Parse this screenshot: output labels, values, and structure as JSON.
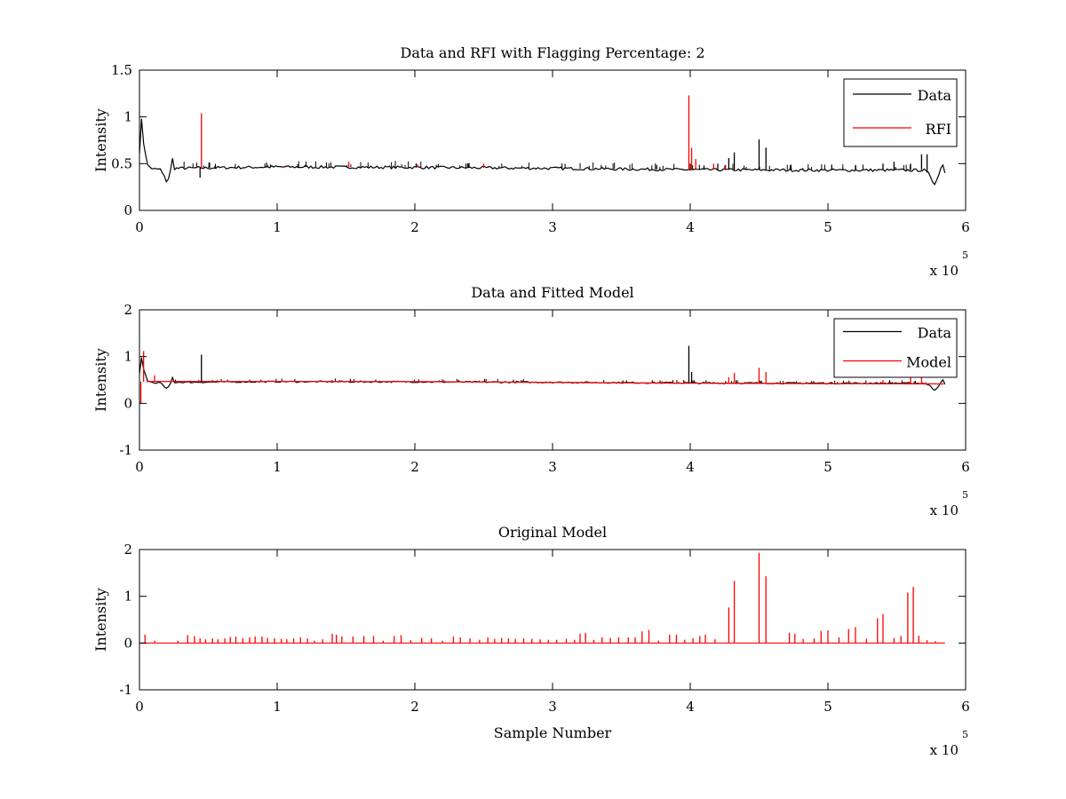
{
  "chart_data": [
    {
      "type": "line",
      "title": "Data and RFI with Flagging Percentage: 2",
      "xlabel": "",
      "ylabel": "Intensity",
      "xlim": [
        0,
        600000
      ],
      "ylim": [
        0,
        1.5
      ],
      "xticks": [
        "0",
        "1",
        "2",
        "3",
        "4",
        "5",
        "6"
      ],
      "yticks": [
        "0",
        "0.5",
        "1",
        "1.5"
      ],
      "x_multiplier": "x 10",
      "x_exponent": "5",
      "grid": false,
      "legend": "top-right",
      "baseline": [
        [
          0,
          0.62
        ],
        [
          1000,
          1.05
        ],
        [
          3000,
          0.72
        ],
        [
          6000,
          0.48
        ],
        [
          10000,
          0.44
        ],
        [
          15000,
          0.44
        ],
        [
          18000,
          0.36
        ],
        [
          20000,
          0.3
        ],
        [
          22000,
          0.38
        ],
        [
          24000,
          0.55
        ],
        [
          25000,
          0.45
        ],
        [
          100000,
          0.465
        ],
        [
          200000,
          0.46
        ],
        [
          300000,
          0.45
        ],
        [
          400000,
          0.435
        ],
        [
          500000,
          0.43
        ],
        [
          570000,
          0.43
        ],
        [
          574000,
          0.38
        ],
        [
          577000,
          0.28
        ],
        [
          580000,
          0.35
        ],
        [
          583000,
          0.52
        ],
        [
          585000,
          0.4
        ]
      ],
      "series": [
        {
          "name": "Data",
          "color": "#000000",
          "spikes": [
            [
              44000,
              0.35
            ],
            [
              400000,
              0.5
            ],
            [
              410000,
              0.48
            ],
            [
              420000,
              0.5
            ],
            [
              428000,
              0.56
            ],
            [
              432000,
              0.62
            ],
            [
              450000,
              0.76
            ],
            [
              455000,
              0.67
            ],
            [
              520000,
              0.48
            ],
            [
              540000,
              0.5
            ],
            [
              548000,
              0.52
            ],
            [
              560000,
              0.5
            ],
            [
              568000,
              0.6
            ],
            [
              572000,
              0.6
            ]
          ]
        },
        {
          "name": "RFI",
          "color": "#ff0000",
          "spikes": [
            [
              45000,
              1.04
            ],
            [
              106000,
              0.48
            ],
            [
              152000,
              0.52
            ],
            [
              202000,
              0.49
            ],
            [
              250000,
              0.5
            ],
            [
              399000,
              1.23
            ],
            [
              401000,
              0.67
            ],
            [
              404000,
              0.55
            ],
            [
              417000,
              0.5
            ],
            [
              425000,
              0.48
            ]
          ]
        }
      ]
    },
    {
      "type": "line",
      "title": "Data and Fitted Model",
      "xlabel": "",
      "ylabel": "Intensity",
      "xlim": [
        0,
        600000
      ],
      "ylim": [
        -1,
        2
      ],
      "xticks": [
        "0",
        "1",
        "2",
        "3",
        "4",
        "5",
        "6"
      ],
      "yticks": [
        "-1",
        "0",
        "1",
        "2"
      ],
      "x_multiplier": "x 10",
      "x_exponent": "5",
      "grid": false,
      "legend": "top-right",
      "series": [
        {
          "name": "Data",
          "color": "#000000",
          "spikes": [
            [
              45000,
              1.04
            ],
            [
              399000,
              1.23
            ],
            [
              401000,
              0.67
            ],
            [
              450000,
              0.5
            ]
          ]
        },
        {
          "name": "Model",
          "color": "#ff0000",
          "spikes": [
            [
              1000,
              0.0
            ],
            [
              3000,
              1.12
            ],
            [
              11000,
              0.6
            ],
            [
              428000,
              0.56
            ],
            [
              432000,
              0.65
            ],
            [
              450000,
              0.76
            ],
            [
              455000,
              0.67
            ],
            [
              540000,
              0.5
            ],
            [
              560000,
              0.55
            ],
            [
              568000,
              0.6
            ]
          ]
        }
      ]
    },
    {
      "type": "line",
      "title": "Original Model",
      "xlabel": "Sample Number",
      "ylabel": "Intensity",
      "xlim": [
        0,
        600000
      ],
      "ylim": [
        -1,
        2
      ],
      "xticks": [
        "0",
        "1",
        "2",
        "3",
        "4",
        "5",
        "6"
      ],
      "yticks": [
        "-1",
        "0",
        "1",
        "2"
      ],
      "x_multiplier": "x 10",
      "x_exponent": "5",
      "grid": false,
      "legend": "none",
      "series": [
        {
          "name": "",
          "color": "#ff0000",
          "spikes": [
            [
              4000,
              0.18
            ],
            [
              11000,
              0.05
            ],
            [
              28000,
              0.05
            ],
            [
              35000,
              0.17
            ],
            [
              40000,
              0.15
            ],
            [
              44000,
              0.1
            ],
            [
              48000,
              0.08
            ],
            [
              53000,
              0.1
            ],
            [
              57000,
              0.08
            ],
            [
              62000,
              0.1
            ],
            [
              66000,
              0.13
            ],
            [
              70000,
              0.14
            ],
            [
              75000,
              0.1
            ],
            [
              80000,
              0.12
            ],
            [
              84000,
              0.14
            ],
            [
              89000,
              0.14
            ],
            [
              93000,
              0.11
            ],
            [
              98000,
              0.1
            ],
            [
              103000,
              0.09
            ],
            [
              107000,
              0.08
            ],
            [
              112000,
              0.1
            ],
            [
              117000,
              0.12
            ],
            [
              122000,
              0.1
            ],
            [
              127000,
              0.05
            ],
            [
              133000,
              0.08
            ],
            [
              140000,
              0.2
            ],
            [
              143000,
              0.18
            ],
            [
              147000,
              0.14
            ],
            [
              155000,
              0.14
            ],
            [
              163000,
              0.15
            ],
            [
              170000,
              0.15
            ],
            [
              177000,
              0.05
            ],
            [
              185000,
              0.15
            ],
            [
              190000,
              0.17
            ],
            [
              197000,
              0.06
            ],
            [
              205000,
              0.11
            ],
            [
              212000,
              0.1
            ],
            [
              220000,
              0.05
            ],
            [
              228000,
              0.14
            ],
            [
              233000,
              0.12
            ],
            [
              240000,
              0.1
            ],
            [
              247000,
              0.07
            ],
            [
              253000,
              0.12
            ],
            [
              258000,
              0.09
            ],
            [
              263000,
              0.11
            ],
            [
              268000,
              0.1
            ],
            [
              273000,
              0.09
            ],
            [
              279000,
              0.1
            ],
            [
              285000,
              0.09
            ],
            [
              291000,
              0.08
            ],
            [
              297000,
              0.07
            ],
            [
              303000,
              0.07
            ],
            [
              310000,
              0.09
            ],
            [
              316000,
              0.07
            ],
            [
              320000,
              0.2
            ],
            [
              324000,
              0.22
            ],
            [
              330000,
              0.07
            ],
            [
              336000,
              0.12
            ],
            [
              342000,
              0.11
            ],
            [
              348000,
              0.12
            ],
            [
              355000,
              0.12
            ],
            [
              360000,
              0.12
            ],
            [
              365000,
              0.25
            ],
            [
              370000,
              0.28
            ],
            [
              377000,
              0.05
            ],
            [
              385000,
              0.18
            ],
            [
              390000,
              0.18
            ],
            [
              396000,
              0.07
            ],
            [
              402000,
              0.1
            ],
            [
              407000,
              0.15
            ],
            [
              411000,
              0.18
            ],
            [
              418000,
              0.08
            ],
            [
              428000,
              0.76
            ],
            [
              432000,
              1.33
            ],
            [
              450000,
              1.93
            ],
            [
              455000,
              1.43
            ],
            [
              472000,
              0.22
            ],
            [
              476000,
              0.2
            ],
            [
              482000,
              0.09
            ],
            [
              490000,
              0.1
            ],
            [
              495000,
              0.26
            ],
            [
              500000,
              0.27
            ],
            [
              508000,
              0.12
            ],
            [
              515000,
              0.3
            ],
            [
              520000,
              0.34
            ],
            [
              528000,
              0.09
            ],
            [
              536000,
              0.53
            ],
            [
              540000,
              0.62
            ],
            [
              548000,
              0.11
            ],
            [
              553000,
              0.15
            ],
            [
              558000,
              1.08
            ],
            [
              562000,
              1.2
            ],
            [
              566000,
              0.16
            ],
            [
              572000,
              0.06
            ],
            [
              578000,
              0.04
            ]
          ]
        }
      ]
    }
  ]
}
